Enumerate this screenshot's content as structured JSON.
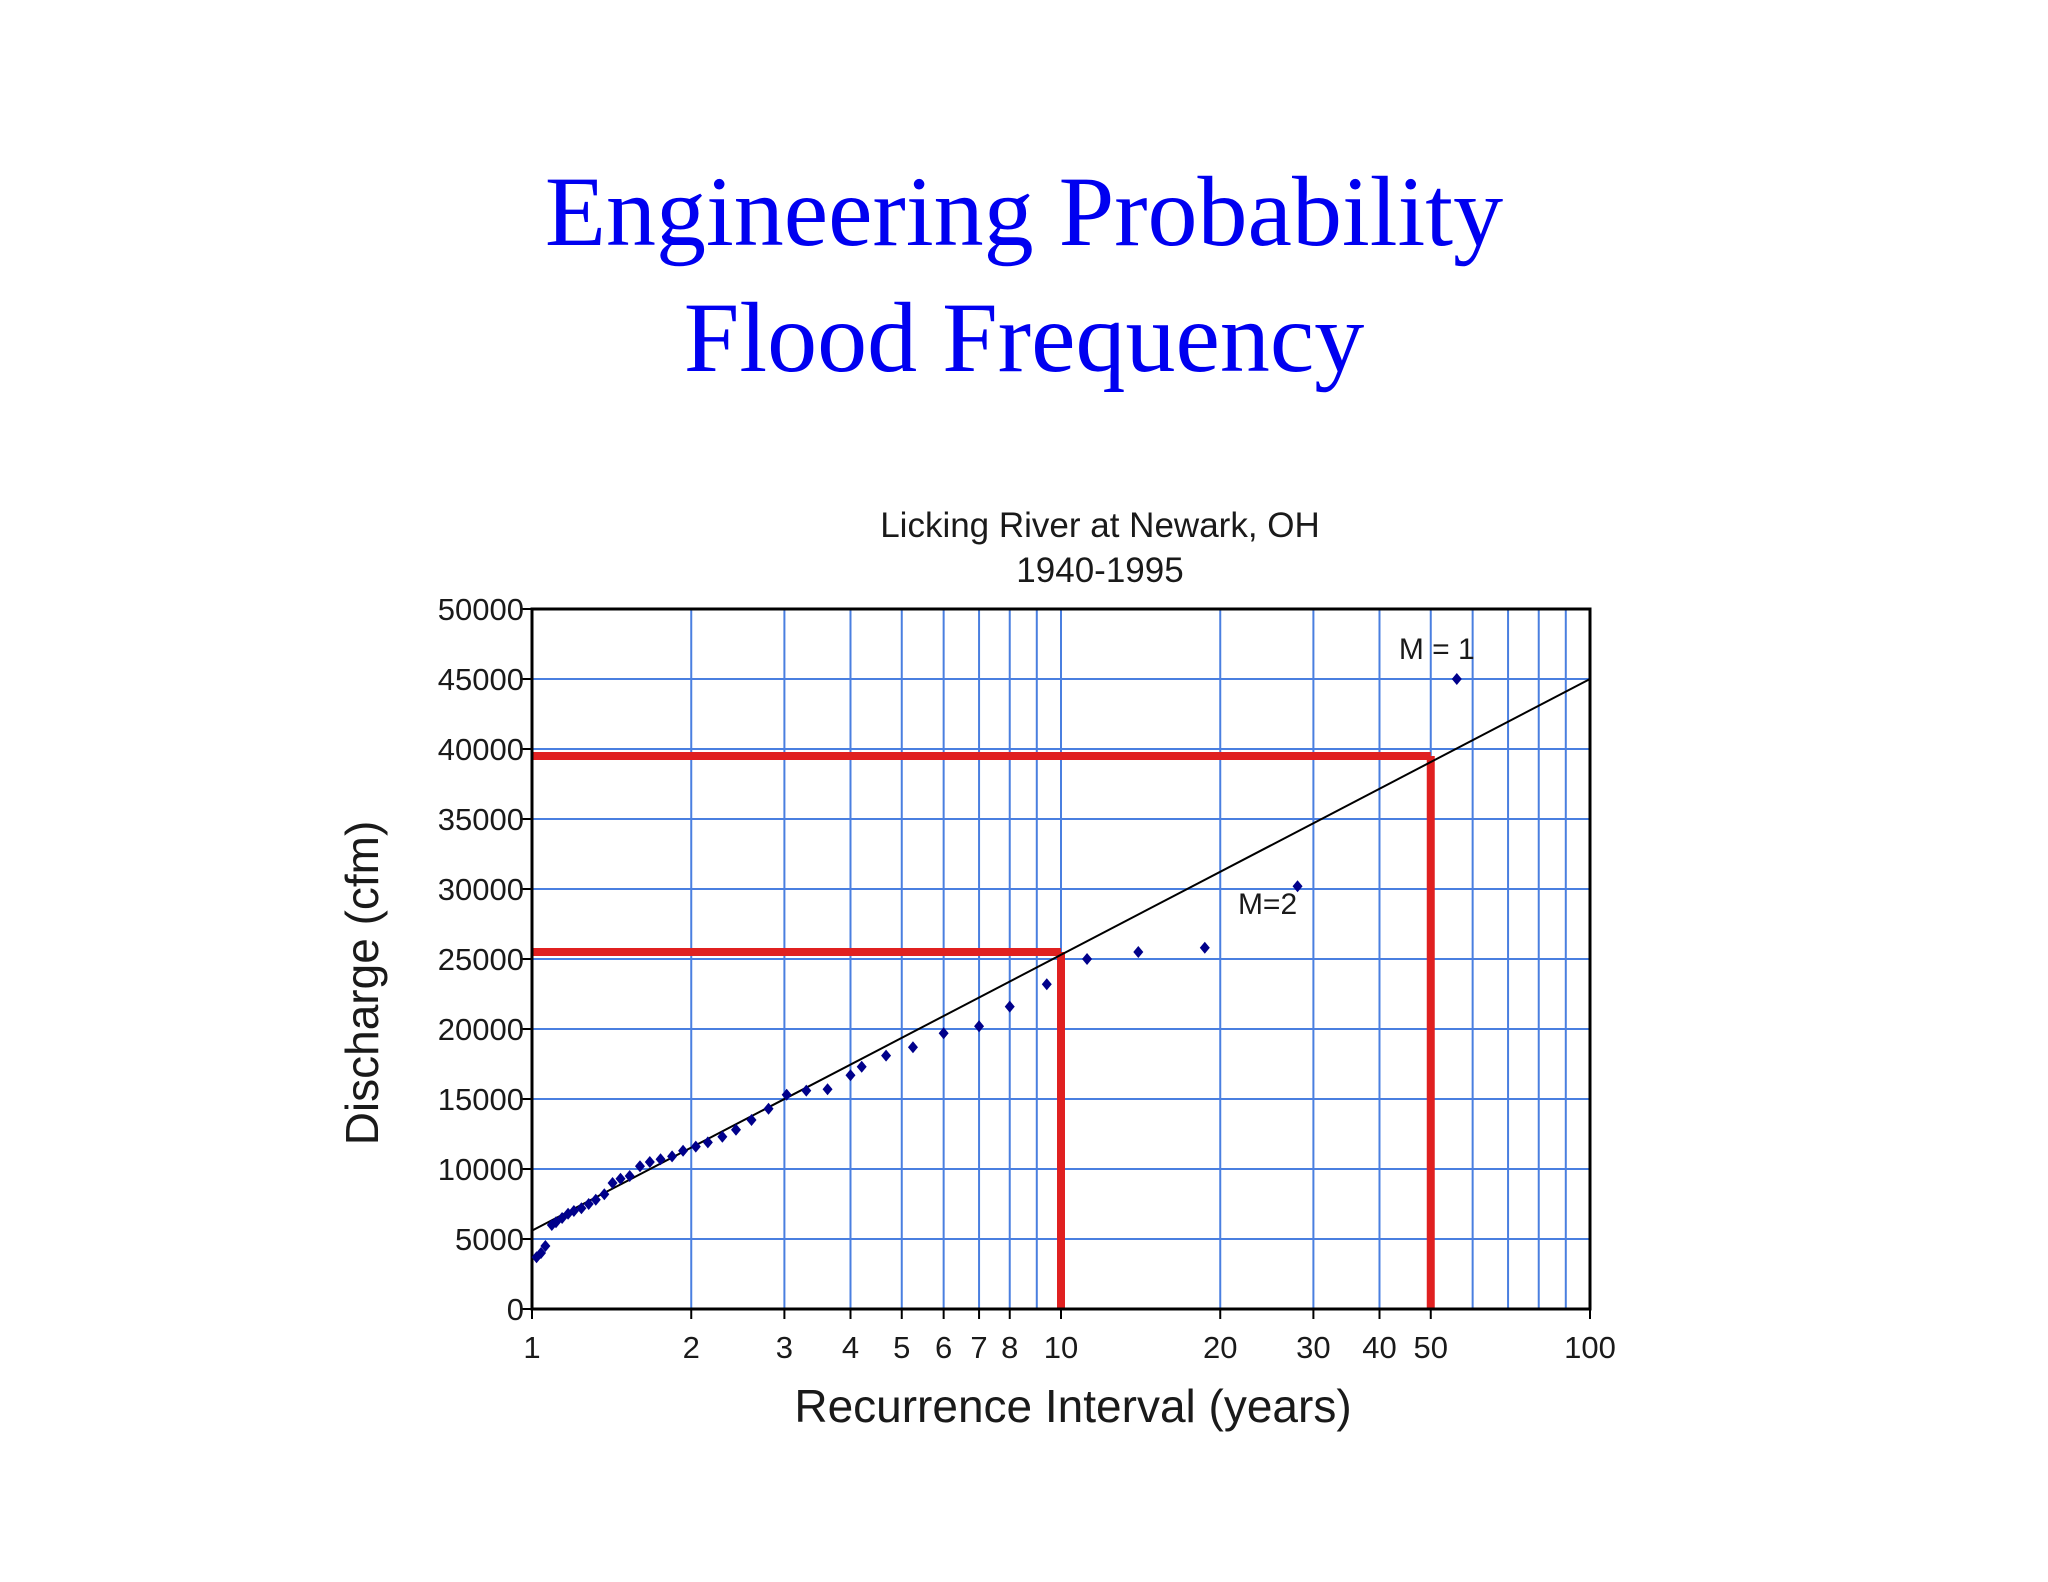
{
  "slide": {
    "title_line1": "Engineering Probability",
    "title_line2": "Flood Frequency"
  },
  "chart_data": {
    "type": "scatter",
    "title": "Licking River at Newark, OH",
    "subtitle": "1940-1995",
    "xlabel": "Recurrence Interval (years)",
    "ylabel": "Discharge (cfm)",
    "xscale": "log",
    "xlim": [
      1,
      100
    ],
    "ylim": [
      0,
      50000
    ],
    "x_ticks": [
      {
        "value": 1,
        "label": "1"
      },
      {
        "value": 2,
        "label": "2"
      },
      {
        "value": 3,
        "label": "3"
      },
      {
        "value": 4,
        "label": "4"
      },
      {
        "value": 5,
        "label": "5"
      },
      {
        "value": 6,
        "label": "6"
      },
      {
        "value": 7,
        "label": "7"
      },
      {
        "value": 8,
        "label": "8"
      },
      {
        "value": 10,
        "label": "10"
      },
      {
        "value": 20,
        "label": "20"
      },
      {
        "value": 30,
        "label": "30"
      },
      {
        "value": 40,
        "label": "40"
      },
      {
        "value": 50,
        "label": "50"
      },
      {
        "value": 100,
        "label": "100"
      }
    ],
    "x_gridlines": [
      1,
      2,
      3,
      4,
      5,
      6,
      7,
      8,
      9,
      10,
      20,
      30,
      40,
      50,
      60,
      70,
      80,
      90,
      100
    ],
    "y_ticks": [
      0,
      5000,
      10000,
      15000,
      20000,
      25000,
      30000,
      35000,
      40000,
      45000,
      50000
    ],
    "grid": true,
    "colors": {
      "grid": "#4a7fe0",
      "points": "#00008b",
      "fit_line": "#000000",
      "highlight": "#e02020",
      "axis": "#000000",
      "title": "#0000f0"
    },
    "series": [
      {
        "values": [
          [
            1.02,
            3700
          ],
          [
            1.04,
            4000
          ],
          [
            1.06,
            4500
          ],
          [
            1.09,
            6000
          ],
          [
            1.11,
            6200
          ],
          [
            1.14,
            6500
          ],
          [
            1.17,
            6800
          ],
          [
            1.2,
            7000
          ],
          [
            1.24,
            7200
          ],
          [
            1.28,
            7500
          ],
          [
            1.32,
            7800
          ],
          [
            1.37,
            8200
          ],
          [
            1.42,
            9000
          ],
          [
            1.47,
            9300
          ],
          [
            1.53,
            9500
          ],
          [
            1.6,
            10200
          ],
          [
            1.67,
            10500
          ],
          [
            1.75,
            10700
          ],
          [
            1.84,
            10900
          ],
          [
            1.93,
            11300
          ],
          [
            2.04,
            11600
          ],
          [
            2.15,
            11900
          ],
          [
            2.29,
            12300
          ],
          [
            2.43,
            12800
          ],
          [
            2.6,
            13500
          ],
          [
            2.8,
            14300
          ],
          [
            3.03,
            15300
          ],
          [
            3.3,
            15600
          ],
          [
            3.62,
            15700
          ],
          [
            4.0,
            16700
          ],
          [
            4.2,
            17300
          ],
          [
            4.67,
            18100
          ],
          [
            5.25,
            18700
          ],
          [
            6.0,
            19700
          ],
          [
            7.0,
            20200
          ],
          [
            8.0,
            21600
          ],
          [
            9.4,
            23200
          ],
          [
            11.2,
            25000
          ],
          [
            14.0,
            25500
          ],
          [
            18.7,
            25800
          ],
          [
            28.0,
            30200
          ],
          [
            56.0,
            45000
          ]
        ]
      }
    ],
    "fit_line": {
      "x": [
        1,
        100
      ],
      "y": [
        5600,
        45000
      ]
    },
    "reference_lines": [
      {
        "x": 10,
        "y": 25500
      },
      {
        "x": 50,
        "y": 39500
      }
    ],
    "annotations": [
      {
        "text": "M = 1",
        "x": 56,
        "y": 45000
      },
      {
        "text": "M=2",
        "x": 28,
        "y": 30200
      }
    ]
  }
}
